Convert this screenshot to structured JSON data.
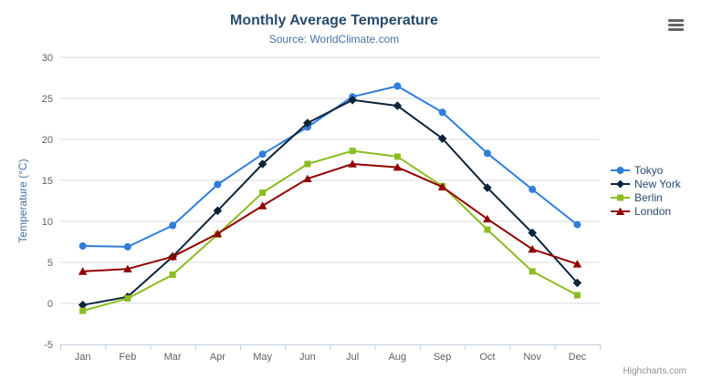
{
  "header": {
    "title": "Monthly Average Temperature",
    "subtitle": "Source: WorldClimate.com"
  },
  "credits_label": "Highcharts.com",
  "export_menu_icon": "hamburger-icon",
  "colors": {
    "title_text": "#274b6d",
    "subtitle_text": "#4572a7",
    "axis_label_text": "#606060",
    "axis_title_text": "#4572a7",
    "axis_line": "#c0d0e0",
    "grid_line": "#d8d8d8",
    "legend_text": "#274b6d",
    "credits_text": "#909090",
    "menu_icon": "#666666"
  },
  "chart_data": {
    "type": "line",
    "title": "Monthly Average Temperature",
    "subtitle": "Source: WorldClimate.com",
    "xlabel": "",
    "ylabel": "Temperature (°C)",
    "ylim": [
      -5,
      30
    ],
    "ytick_step": 5,
    "grid": true,
    "legend_position": "right-middle",
    "categories": [
      "Jan",
      "Feb",
      "Mar",
      "Apr",
      "May",
      "Jun",
      "Jul",
      "Aug",
      "Sep",
      "Oct",
      "Nov",
      "Dec"
    ],
    "series": [
      {
        "name": "Tokyo",
        "color": "#2f7ed8",
        "marker": "circle",
        "values": [
          7.0,
          6.9,
          9.5,
          14.5,
          18.2,
          21.5,
          25.2,
          26.5,
          23.3,
          18.3,
          13.9,
          9.6
        ]
      },
      {
        "name": "New York",
        "color": "#0d233a",
        "marker": "diamond",
        "values": [
          -0.2,
          0.8,
          5.7,
          11.3,
          17.0,
          22.0,
          24.8,
          24.1,
          20.1,
          14.1,
          8.6,
          2.5
        ]
      },
      {
        "name": "Berlin",
        "color": "#8bbc21",
        "marker": "square",
        "values": [
          -0.9,
          0.6,
          3.5,
          8.4,
          13.5,
          17.0,
          18.6,
          17.9,
          14.3,
          9.0,
          3.9,
          1.0
        ]
      },
      {
        "name": "London",
        "color": "#910000",
        "marker": "triangle",
        "values": [
          3.9,
          4.2,
          5.7,
          8.5,
          11.9,
          15.2,
          17.0,
          16.6,
          14.2,
          10.3,
          6.6,
          4.8
        ]
      }
    ]
  }
}
